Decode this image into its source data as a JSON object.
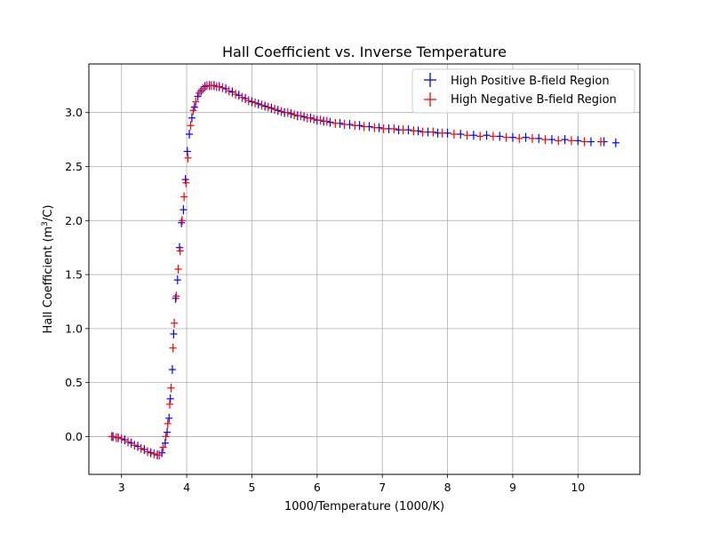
{
  "chart_data": {
    "type": "scatter",
    "title": "Hall Coefficient vs. Inverse Temperature",
    "xlabel": "1000/Temperature (1000/K)",
    "ylabel_main": "Hall Coefficient (m",
    "ylabel_sup": "3",
    "ylabel_end": "/C)",
    "xlim": [
      2.5,
      10.95
    ],
    "ylim": [
      -0.35,
      3.45
    ],
    "xticks": [
      "3",
      "4",
      "5",
      "6",
      "7",
      "8",
      "9",
      "10"
    ],
    "xtick_values": [
      3,
      4,
      5,
      6,
      7,
      8,
      9,
      10
    ],
    "yticks": [
      "0.0",
      "0.5",
      "1.0",
      "1.5",
      "2.0",
      "2.5",
      "3.0"
    ],
    "ytick_values": [
      0.0,
      0.5,
      1.0,
      1.5,
      2.0,
      2.5,
      3.0
    ],
    "grid": true,
    "legend_position": "top-right",
    "series": [
      {
        "name": "High Positive B-field Region",
        "color": "#0000ff",
        "marker": "plus",
        "x": [
          2.87,
          2.95,
          3.05,
          3.15,
          3.25,
          3.35,
          3.45,
          3.55,
          3.62,
          3.67,
          3.7,
          3.73,
          3.75,
          3.78,
          3.8,
          3.83,
          3.86,
          3.89,
          3.92,
          3.95,
          3.98,
          4.01,
          4.04,
          4.08,
          4.12,
          4.17,
          4.22,
          4.28,
          4.35,
          4.42,
          4.5,
          4.6,
          4.7,
          4.8,
          4.9,
          5.0,
          5.1,
          5.2,
          5.3,
          5.4,
          5.5,
          5.6,
          5.7,
          5.8,
          5.9,
          6.0,
          6.1,
          6.2,
          6.35,
          6.5,
          6.65,
          6.8,
          6.95,
          7.1,
          7.25,
          7.4,
          7.55,
          7.7,
          7.85,
          8.0,
          8.2,
          8.4,
          8.6,
          8.8,
          9.0,
          9.2,
          9.4,
          9.6,
          9.8,
          10.0,
          10.2,
          10.4,
          10.58
        ],
        "y": [
          0.0,
          -0.01,
          -0.03,
          -0.06,
          -0.09,
          -0.12,
          -0.15,
          -0.17,
          -0.15,
          -0.06,
          0.04,
          0.17,
          0.35,
          0.62,
          0.95,
          1.28,
          1.45,
          1.75,
          1.98,
          2.1,
          2.38,
          2.64,
          2.8,
          2.95,
          3.05,
          3.15,
          3.2,
          3.24,
          3.25,
          3.25,
          3.24,
          3.22,
          3.19,
          3.16,
          3.13,
          3.1,
          3.08,
          3.06,
          3.04,
          3.02,
          3.0,
          2.99,
          2.97,
          2.96,
          2.95,
          2.93,
          2.92,
          2.91,
          2.9,
          2.89,
          2.88,
          2.87,
          2.86,
          2.85,
          2.84,
          2.84,
          2.83,
          2.82,
          2.81,
          2.81,
          2.8,
          2.79,
          2.79,
          2.78,
          2.77,
          2.77,
          2.76,
          2.75,
          2.75,
          2.74,
          2.73,
          2.73,
          2.72
        ]
      },
      {
        "name": "High Negative B-field Region",
        "color": "#ff0000",
        "marker": "plus",
        "x": [
          2.85,
          2.92,
          3.0,
          3.1,
          3.2,
          3.3,
          3.4,
          3.5,
          3.58,
          3.64,
          3.68,
          3.71,
          3.74,
          3.76,
          3.79,
          3.81,
          3.84,
          3.87,
          3.9,
          3.93,
          3.96,
          3.99,
          4.02,
          4.06,
          4.1,
          4.14,
          4.19,
          4.25,
          4.31,
          4.38,
          4.46,
          4.55,
          4.65,
          4.75,
          4.85,
          4.95,
          5.05,
          5.15,
          5.25,
          5.35,
          5.45,
          5.55,
          5.65,
          5.75,
          5.85,
          5.95,
          6.05,
          6.15,
          6.28,
          6.42,
          6.58,
          6.72,
          6.88,
          7.02,
          7.18,
          7.32,
          7.48,
          7.62,
          7.78,
          7.92,
          8.1,
          8.3,
          8.5,
          8.7,
          8.9,
          9.1,
          9.3,
          9.5,
          9.7,
          9.9,
          10.1,
          10.35
        ],
        "y": [
          0.0,
          -0.01,
          -0.02,
          -0.05,
          -0.08,
          -0.11,
          -0.14,
          -0.16,
          -0.17,
          -0.1,
          0.0,
          0.12,
          0.3,
          0.45,
          0.82,
          1.05,
          1.3,
          1.55,
          1.72,
          2.0,
          2.22,
          2.35,
          2.58,
          2.88,
          3.02,
          3.1,
          3.18,
          3.22,
          3.25,
          3.25,
          3.24,
          3.23,
          3.2,
          3.17,
          3.14,
          3.11,
          3.09,
          3.07,
          3.05,
          3.03,
          3.01,
          3.0,
          2.98,
          2.97,
          2.95,
          2.94,
          2.93,
          2.92,
          2.9,
          2.89,
          2.88,
          2.87,
          2.86,
          2.85,
          2.85,
          2.84,
          2.83,
          2.82,
          2.82,
          2.81,
          2.8,
          2.79,
          2.78,
          2.78,
          2.77,
          2.76,
          2.76,
          2.75,
          2.74,
          2.74,
          2.73,
          2.73
        ]
      }
    ]
  }
}
